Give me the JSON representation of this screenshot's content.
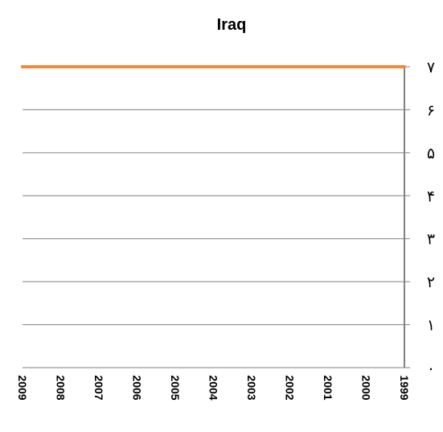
{
  "chart_data": {
    "type": "line",
    "title": "Iraq",
    "x": [
      "2009",
      "2008",
      "2007",
      "2006",
      "2005",
      "2004",
      "2003",
      "2002",
      "2001",
      "2000",
      "1999"
    ],
    "series": [
      {
        "values": [
          7,
          7,
          7,
          7,
          7,
          7,
          7,
          7,
          7,
          7,
          7
        ],
        "color": "#f4893a"
      }
    ],
    "y_tick_labels": [
      "٠",
      "١",
      "٢",
      "٣",
      "۴",
      "۵",
      "۶",
      "٧"
    ],
    "ylim": [
      0,
      7
    ],
    "y_axis_position": "right",
    "x_reversed": true,
    "grid": true,
    "legend": "none",
    "colors": {
      "line": "#f4893a",
      "grid": "#808080",
      "axis": "#808080"
    }
  }
}
